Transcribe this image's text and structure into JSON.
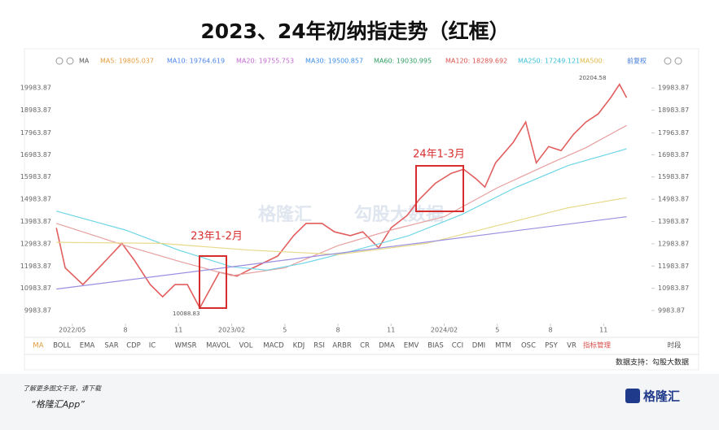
{
  "chart_data": {
    "type": "line",
    "title": "2023、24年初纳指走势（红框）",
    "toolbar": [
      {
        "text": "MA",
        "color": "#555555"
      },
      {
        "text": "MA5: 19805.037",
        "color": "#e39c3d"
      },
      {
        "text": "MA10: 19764.619",
        "color": "#4f86e8"
      },
      {
        "text": "MA20: 19755.753",
        "color": "#c36bd1"
      },
      {
        "text": "MA30: 19500.857",
        "color": "#3e8ee6"
      },
      {
        "text": "MA60: 19030.995",
        "color": "#2f9e62"
      },
      {
        "text": "MA120: 18289.692",
        "color": "#d9534f"
      },
      {
        "text": "MA250: 17249.121",
        "color": "#3bbfd6"
      },
      {
        "text": "MA500:",
        "color": "#e0b84a"
      },
      {
        "text": "前复权",
        "color": "#3e78d8"
      }
    ],
    "xlim": [
      -1,
      32.7
    ],
    "ylim": [
      9400,
      20650
    ],
    "xticks": [
      {
        "value": 0,
        "label": "2022/05"
      },
      {
        "value": 3,
        "label": "8"
      },
      {
        "value": 6,
        "label": "11"
      },
      {
        "value": 9,
        "label": "2023/02"
      },
      {
        "value": 12,
        "label": "5"
      },
      {
        "value": 15,
        "label": "8"
      },
      {
        "value": 18,
        "label": "11"
      },
      {
        "value": 21,
        "label": "2024/02"
      },
      {
        "value": 24,
        "label": "5"
      },
      {
        "value": 27,
        "label": "8"
      },
      {
        "value": 30,
        "label": "11"
      }
    ],
    "yticks": [
      9983.87,
      10983.87,
      11983.87,
      12983.87,
      13983.87,
      14983.87,
      15983.87,
      16983.87,
      17963.87,
      18983.87,
      19983.87
    ],
    "series": [
      {
        "color": "#e15f5f",
        "x": [
          -0.9,
          -0.4,
          0.6,
          1.5,
          2.8,
          3.5,
          4.4,
          5.1,
          5.8,
          6.5,
          7.2,
          8.3,
          9.3,
          10.2,
          11.6,
          12.5,
          13.2,
          14.1,
          14.8,
          15.7,
          16.4,
          17.3,
          18.0,
          18.9,
          19.6,
          20.5,
          21.4,
          22.1,
          22.8,
          23.3,
          23.9,
          24.9,
          25.6,
          26.2,
          26.9,
          27.6,
          28.3,
          29.0,
          29.7,
          30.4,
          30.9,
          31.3
        ],
        "values": [
          13700,
          11900,
          11150,
          11900,
          13000,
          12250,
          11150,
          10600,
          11150,
          11150,
          10100,
          11700,
          11530,
          11900,
          12430,
          13350,
          13900,
          13900,
          13520,
          13350,
          13520,
          12800,
          13700,
          14250,
          14980,
          15700,
          16150,
          16330,
          15900,
          15530,
          16620,
          17540,
          18450,
          16620,
          17350,
          17170,
          17900,
          18450,
          18820,
          19550,
          20150,
          19550
        ]
      },
      {
        "color": "#e7a0a0",
        "x": [
          -0.9,
          3,
          6,
          9,
          12,
          15,
          18,
          21,
          24,
          27,
          29,
          31.3
        ],
        "values": [
          13900,
          12900,
          12200,
          11550,
          11900,
          12900,
          13600,
          14200,
          15500,
          16600,
          17300,
          18300
        ]
      },
      {
        "color": "#6fd6e6",
        "x": [
          -0.9,
          3,
          6,
          9,
          11,
          13,
          16,
          19,
          22,
          25,
          28,
          31.3
        ],
        "values": [
          14450,
          13600,
          12700,
          11950,
          11800,
          12100,
          12700,
          13350,
          14300,
          15500,
          16500,
          17250
        ]
      },
      {
        "color": "#e8d98a",
        "x": [
          -0.9,
          5,
          10,
          15,
          20,
          25,
          28,
          31.3
        ],
        "values": [
          13050,
          13000,
          12700,
          12500,
          13000,
          14000,
          14600,
          15050
        ]
      },
      {
        "color": "#9a8fe0",
        "x": [
          -0.9,
          31.3
        ],
        "values": [
          10950,
          14200
        ]
      }
    ],
    "annotations": [
      "20204.58",
      "10088.83",
      "23年1-2月",
      "24年1-3月"
    ],
    "watermark": [
      "格隆汇",
      "勾股大数据"
    ],
    "tabs": [
      "MA",
      "BOLL",
      "EMA",
      "SAR",
      "CDP",
      "IC",
      "WMSR",
      "MAVOL",
      "VOL",
      "MACD",
      "KDJ",
      "RSI",
      "ARBR",
      "CR",
      "DMA",
      "EMV",
      "BIAS",
      "CCI",
      "DMI",
      "MTM",
      "OSC",
      "PSY",
      "VR",
      "指标管理",
      "时段"
    ],
    "source": "数据支持：勾股大数据",
    "footer": {
      "note": "了解更多图文干货，请下载",
      "app": "“格隆汇App”",
      "logo": "格隆汇"
    }
  }
}
